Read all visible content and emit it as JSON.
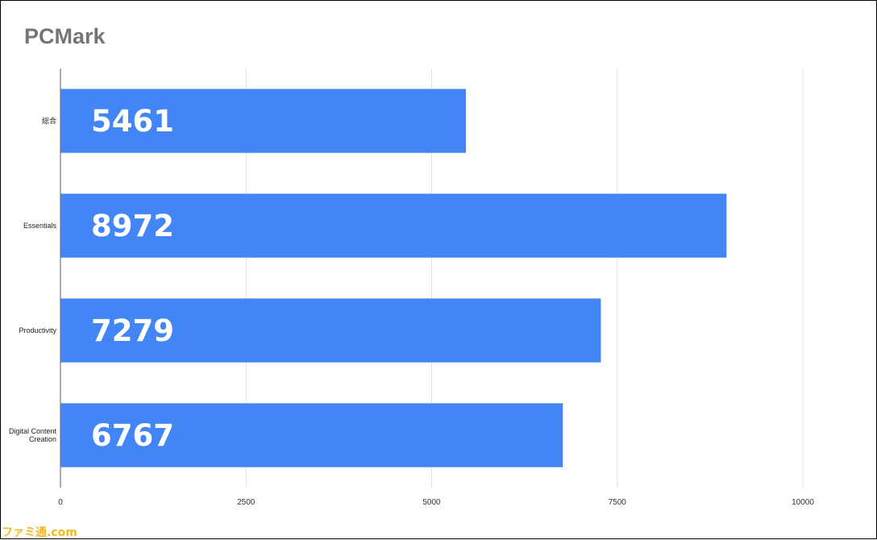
{
  "chart_data": {
    "type": "bar",
    "orientation": "horizontal",
    "title": "PCMark",
    "categories": [
      "総合",
      "Essentials",
      "Productivity",
      "Digital Content Creation"
    ],
    "category_lines": [
      [
        "総合"
      ],
      [
        "Essentials"
      ],
      [
        "Productivity"
      ],
      [
        "Digital Content",
        "Creation"
      ]
    ],
    "values": [
      5461,
      8972,
      7279,
      6767
    ],
    "data_labels": [
      "5461",
      "8972",
      "7279",
      "6767"
    ],
    "xlim": [
      0,
      10000
    ],
    "xticks": [
      0,
      2500,
      5000,
      7500,
      10000
    ],
    "xtick_labels": [
      "0",
      "2500",
      "5000",
      "7500",
      "10000"
    ],
    "grid": true,
    "legend": "none",
    "bar_color": "#4285f4"
  },
  "watermark": "ファミ通.com"
}
